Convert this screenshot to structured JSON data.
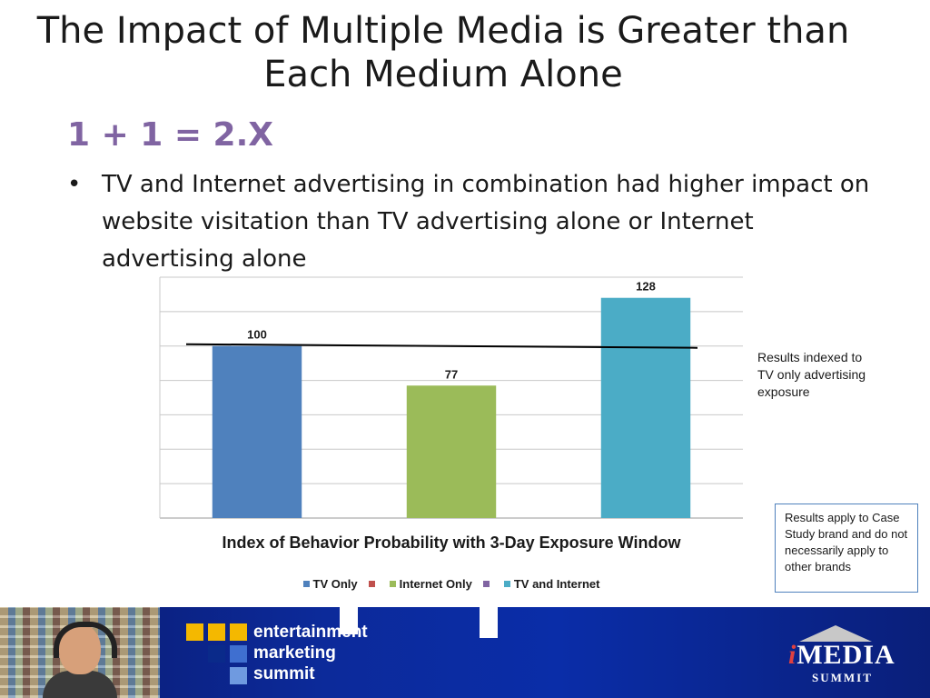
{
  "slide": {
    "title": "The Impact of Multiple Media is Greater than Each Medium Alone",
    "equation": "1 + 1 = 2.X",
    "bullet_symbol": "•",
    "bullet": "TV and Internet advertising in combination had higher impact on website visitation than TV advertising alone or Internet advertising alone",
    "side_note": "Results indexed to TV only advertising exposure",
    "box_note": "Results apply to Case Study brand and do not necessarily apply to other brands"
  },
  "chart_data": {
    "type": "bar",
    "title": "Index of Behavior Probability with 3-Day Exposure Window",
    "categories": [
      "TV Only",
      "Internet Only",
      "TV and Internet"
    ],
    "values": [
      100,
      77,
      128
    ],
    "colors": [
      "#4f81bd",
      "#9bbb59",
      "#4bacc6"
    ],
    "data_labels": [
      "100",
      "77",
      "128"
    ],
    "reference_line": 100,
    "ylim": [
      0,
      140
    ],
    "grid": true,
    "show_tick_labels": false,
    "legend": [
      {
        "label": "TV Only",
        "color": "#4f81bd"
      },
      {
        "label": "",
        "color": "#c0504d"
      },
      {
        "label": "Internet Only",
        "color": "#9bbb59"
      },
      {
        "label": "",
        "color": "#8064a2"
      },
      {
        "label": "TV and Internet",
        "color": "#4bacc6"
      }
    ],
    "legend_position": "bottom"
  },
  "footer": {
    "logo_lines": [
      "entertainment",
      "marketing",
      "summit"
    ],
    "brand_prefix": "i",
    "brand_name": "MEDIA",
    "brand_sub": "SUMMIT",
    "colors": {
      "band": "#0c2a9a",
      "accent_yellow": "#f4b800",
      "accent_blue": "#3f6fd0"
    }
  }
}
